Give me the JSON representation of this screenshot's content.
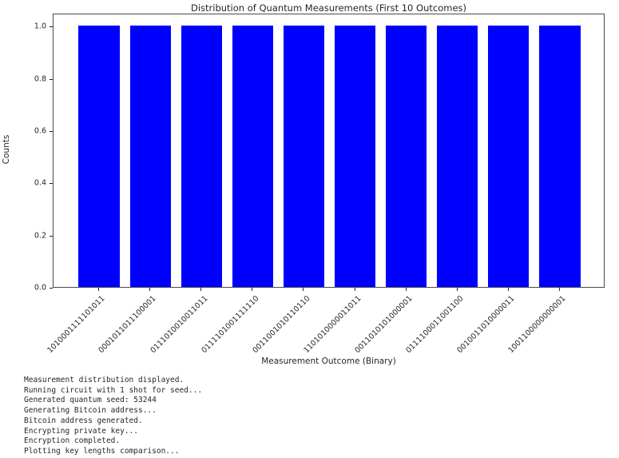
{
  "chart_data": {
    "type": "bar",
    "title": "Distribution of Quantum Measurements (First 10 Outcomes)",
    "xlabel": "Measurement Outcome (Binary)",
    "ylabel": "Counts",
    "categories": [
      "1010001111101011",
      "0001011011100001",
      "0111010010011011",
      "0111101001111110",
      "0011001010110110",
      "1101010000011011",
      "0011010101000001",
      "0111100011001100",
      "0010011010000011",
      "1001100000000001"
    ],
    "values": [
      1.0,
      1.0,
      1.0,
      1.0,
      1.0,
      1.0,
      1.0,
      1.0,
      1.0,
      1.0
    ],
    "yticks": [
      "0.0",
      "0.2",
      "0.4",
      "0.6",
      "0.8",
      "1.0"
    ],
    "ylim": [
      0,
      1.05
    ],
    "bar_color": "#0000ff",
    "bar_width_fraction": 0.8,
    "x_tick_rotation": 45,
    "grid": false,
    "legend": null
  },
  "console": {
    "lines": [
      "Measurement distribution displayed.",
      "Running circuit with 1 shot for seed...",
      "Generated quantum seed: 53244",
      "Generating Bitcoin address...",
      "Bitcoin address generated.",
      "Encrypting private key...",
      "Encryption completed.",
      "Plotting key lengths comparison..."
    ]
  }
}
